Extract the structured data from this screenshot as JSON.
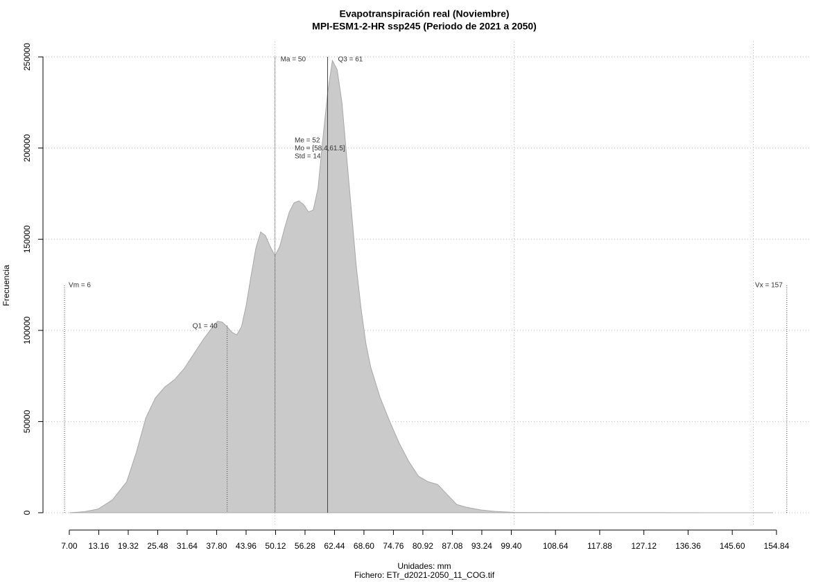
{
  "chart_data": {
    "type": "area",
    "title": "Evapotranspiración real (Noviembre)",
    "subtitle": "MPI-ESM1-2-HR ssp245 (Periodo de 2021 a 2050)",
    "x_label": "Unidades: mm",
    "caption": "Fichero: ETr_d2021-2050_11_COG.tif",
    "y_label": "Frecuencia",
    "color": "#cacaca",
    "edge_color": "#a8a8a8",
    "x": [
      7,
      10,
      13,
      16,
      19,
      21,
      23,
      25,
      27,
      29,
      31,
      33,
      35,
      37,
      38,
      39,
      40,
      41,
      42,
      43,
      44,
      45,
      46,
      47,
      48,
      49,
      50,
      51,
      52,
      53,
      54,
      55,
      56,
      57,
      58,
      59,
      60,
      61,
      62,
      63,
      64,
      65,
      66,
      67,
      68,
      69,
      70,
      72,
      74,
      76,
      78,
      80,
      82,
      84,
      86,
      88,
      90,
      93,
      96,
      100,
      110,
      130,
      150,
      154
    ],
    "values": [
      0,
      500,
      2000,
      7000,
      17000,
      33000,
      52000,
      63000,
      69000,
      73000,
      79000,
      87000,
      95000,
      102000,
      105000,
      104500,
      102000,
      99000,
      97500,
      102000,
      114000,
      130000,
      145000,
      154000,
      152000,
      146000,
      141000,
      146000,
      156000,
      165000,
      170000,
      171000,
      169000,
      165000,
      166000,
      178000,
      205000,
      230000,
      248000,
      243000,
      225000,
      195000,
      165000,
      135000,
      112000,
      93000,
      80000,
      63000,
      50000,
      38000,
      28000,
      20000,
      17000,
      15500,
      10000,
      4500,
      3000,
      1500,
      700,
      200,
      80,
      30,
      10,
      0
    ],
    "xlim": [
      1.5,
      162.1
    ],
    "ylim": [
      -7600,
      258400
    ],
    "xticks": [
      {
        "value": 7,
        "label": "7.00"
      },
      13.16,
      19.32,
      25.48,
      31.64,
      {
        "value": 37.8,
        "label": "37.80"
      },
      43.96,
      50.12,
      56.28,
      62.44,
      {
        "value": 68.6,
        "label": "68.60"
      },
      74.76,
      80.92,
      87.08,
      93.24,
      {
        "value": 99.4,
        "label": "99.40"
      },
      108.64,
      117.88,
      127.12,
      136.36,
      {
        "value": 145.6,
        "label": "145.60"
      },
      154.84
    ],
    "yticks": [
      0,
      50000,
      100000,
      150000,
      200000,
      250000
    ],
    "xgrid": [
      50,
      100,
      150
    ],
    "grid": true,
    "markers": [
      {
        "label": "Vm = 6",
        "value": 6
      },
      {
        "label": "Q1 = 40",
        "value": 40
      },
      {
        "label": "Ma = 50",
        "value": 50
      },
      {
        "label": "Q3 = 61",
        "value": 61
      },
      {
        "label": "Vx = 157",
        "value": 157
      }
    ],
    "annotations": [
      "Me = 52",
      "Mo = [58.4,61.5]",
      "Std = 14"
    ]
  }
}
